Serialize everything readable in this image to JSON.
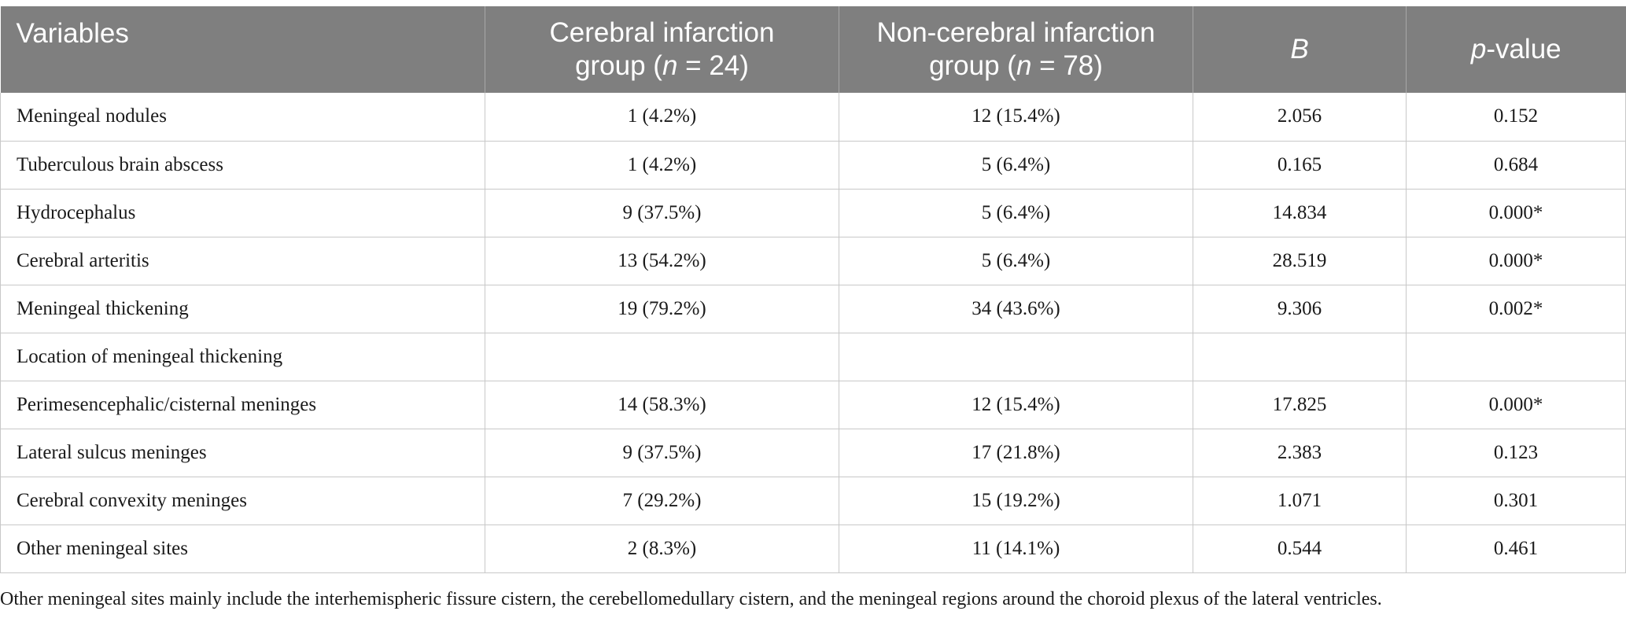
{
  "table": {
    "headers": {
      "variables": "Variables",
      "group1_line1": "Cerebral infarction",
      "group1_line2_pre": "group (",
      "group1_n": "n",
      "group1_line2_post": " = 24)",
      "group2_line1": "Non-cerebral infarction",
      "group2_line2_pre": "group (",
      "group2_n": "n",
      "group2_line2_post": " = 78)",
      "b": "B",
      "p_italic": "p",
      "p_rest": "-value"
    },
    "rows": [
      {
        "variable": "Meningeal nodules",
        "group1": "1 (4.2%)",
        "group2": "12 (15.4%)",
        "b": "2.056",
        "p": "0.152"
      },
      {
        "variable": "Tuberculous brain abscess",
        "group1": "1 (4.2%)",
        "group2": "5 (6.4%)",
        "b": "0.165",
        "p": "0.684"
      },
      {
        "variable": "Hydrocephalus",
        "group1": "9 (37.5%)",
        "group2": "5 (6.4%)",
        "b": "14.834",
        "p": "0.000*"
      },
      {
        "variable": "Cerebral arteritis",
        "group1": "13 (54.2%)",
        "group2": "5 (6.4%)",
        "b": "28.519",
        "p": "0.000*"
      },
      {
        "variable": "Meningeal thickening",
        "group1": "19 (79.2%)",
        "group2": "34 (43.6%)",
        "b": "9.306",
        "p": "0.002*"
      },
      {
        "variable": "Location of meningeal thickening",
        "group1": "",
        "group2": "",
        "b": "",
        "p": ""
      },
      {
        "variable": "Perimesencephalic/cisternal meninges",
        "group1": "14 (58.3%)",
        "group2": "12 (15.4%)",
        "b": "17.825",
        "p": "0.000*"
      },
      {
        "variable": "Lateral sulcus meninges",
        "group1": "9 (37.5%)",
        "group2": "17 (21.8%)",
        "b": "2.383",
        "p": "0.123"
      },
      {
        "variable": "Cerebral convexity meninges",
        "group1": "7 (29.2%)",
        "group2": "15 (19.2%)",
        "b": "1.071",
        "p": "0.301"
      },
      {
        "variable": "Other meningeal sites",
        "group1": "2 (8.3%)",
        "group2": "11 (14.1%)",
        "b": "0.544",
        "p": "0.461"
      }
    ]
  },
  "footnote": "Other meningeal sites mainly include the interhemispheric fissure cistern, the cerebellomedullary cistern, and the meningeal regions around the choroid plexus of the lateral ventricles."
}
